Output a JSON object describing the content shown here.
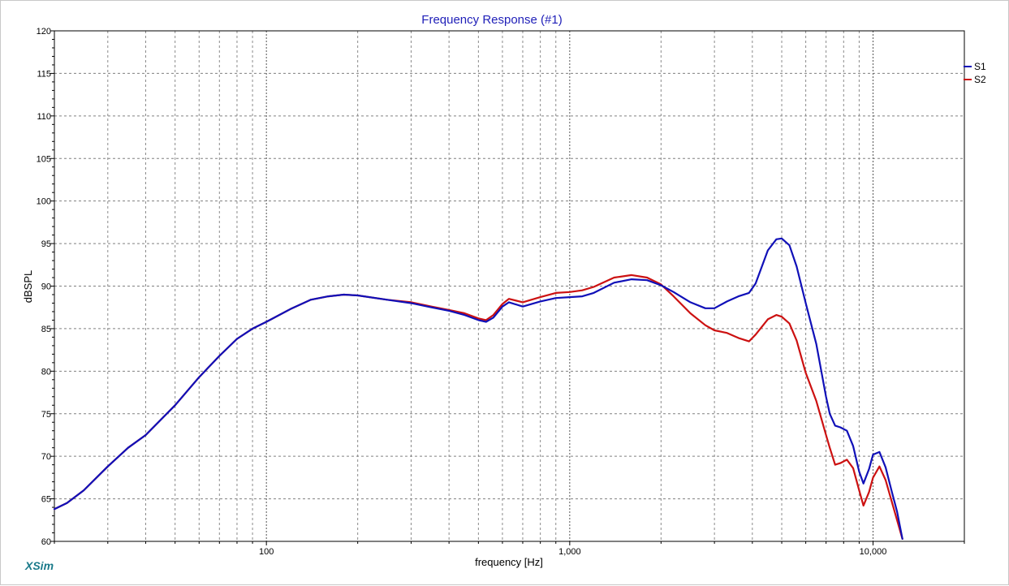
{
  "app": {
    "brand": "XSim"
  },
  "chart_data": {
    "type": "line",
    "title": "Frequency Response (#1)",
    "xlabel": "frequency [Hz]",
    "ylabel": "dBSPL",
    "x_scale": "log",
    "xlim": [
      20,
      20000
    ],
    "ylim": [
      60,
      120
    ],
    "x_ticks": [
      {
        "value": 100,
        "label": "100"
      },
      {
        "value": 1000,
        "label": "1,000"
      },
      {
        "value": 10000,
        "label": "10,000"
      }
    ],
    "y_ticks": [
      60,
      65,
      70,
      75,
      80,
      85,
      90,
      95,
      100,
      105,
      110,
      115,
      120
    ],
    "grid": true,
    "legend_position": "right",
    "series": [
      {
        "name": "S1",
        "color": "#1010b8",
        "x": [
          20,
          22,
          25,
          30,
          35,
          40,
          50,
          60,
          70,
          80,
          90,
          100,
          120,
          140,
          160,
          180,
          200,
          250,
          300,
          350,
          400,
          450,
          500,
          530,
          560,
          600,
          630,
          700,
          800,
          900,
          1000,
          1100,
          1200,
          1400,
          1600,
          1800,
          2000,
          2200,
          2500,
          2800,
          3000,
          3300,
          3600,
          3900,
          4100,
          4500,
          4800,
          5000,
          5300,
          5600,
          6000,
          6500,
          7000,
          7200,
          7500,
          7800,
          8200,
          8600,
          9000,
          9300,
          9700,
          10000,
          10500,
          11000,
          11500,
          12000,
          12500
        ],
        "values": [
          63.8,
          64.5,
          66.0,
          68.8,
          71.0,
          72.5,
          76.0,
          79.3,
          81.8,
          83.8,
          85.0,
          85.8,
          87.3,
          88.4,
          88.8,
          89.0,
          88.9,
          88.4,
          88.0,
          87.5,
          87.1,
          86.6,
          86.0,
          85.8,
          86.3,
          87.6,
          88.1,
          87.6,
          88.2,
          88.6,
          88.7,
          88.8,
          89.2,
          90.4,
          90.8,
          90.7,
          90.1,
          89.3,
          88.1,
          87.4,
          87.4,
          88.2,
          88.8,
          89.2,
          90.3,
          94.2,
          95.5,
          95.6,
          94.8,
          92.3,
          88.0,
          83.2,
          77.0,
          75.0,
          73.6,
          73.4,
          73.0,
          71.2,
          68.2,
          66.8,
          68.5,
          70.2,
          70.5,
          68.7,
          66.0,
          63.5,
          60.3
        ]
      },
      {
        "name": "S2",
        "color": "#cc1111",
        "x": [
          20,
          22,
          25,
          30,
          35,
          40,
          50,
          60,
          70,
          80,
          90,
          100,
          120,
          140,
          160,
          180,
          200,
          250,
          300,
          350,
          400,
          450,
          500,
          530,
          560,
          600,
          630,
          700,
          800,
          900,
          1000,
          1100,
          1200,
          1400,
          1600,
          1800,
          2000,
          2200,
          2500,
          2800,
          3000,
          3300,
          3600,
          3900,
          4100,
          4500,
          4800,
          5000,
          5300,
          5600,
          6000,
          6500,
          7000,
          7200,
          7500,
          7800,
          8200,
          8600,
          9000,
          9300,
          9700,
          10000,
          10500,
          11000,
          11500,
          12000,
          12500
        ],
        "values": [
          63.8,
          64.5,
          66.0,
          68.8,
          71.0,
          72.5,
          76.0,
          79.3,
          81.8,
          83.8,
          85.0,
          85.8,
          87.3,
          88.4,
          88.8,
          89.0,
          88.9,
          88.4,
          88.1,
          87.6,
          87.2,
          86.8,
          86.2,
          86.0,
          86.6,
          87.9,
          88.5,
          88.1,
          88.7,
          89.2,
          89.3,
          89.5,
          89.9,
          91.0,
          91.3,
          91.0,
          90.2,
          88.8,
          86.8,
          85.4,
          84.8,
          84.5,
          83.9,
          83.5,
          84.3,
          86.1,
          86.6,
          86.4,
          85.6,
          83.6,
          79.8,
          76.5,
          72.5,
          71.0,
          69.0,
          69.2,
          69.6,
          68.6,
          66.0,
          64.2,
          65.8,
          67.5,
          68.8,
          67.2,
          64.8,
          62.5,
          60.3
        ]
      }
    ]
  }
}
